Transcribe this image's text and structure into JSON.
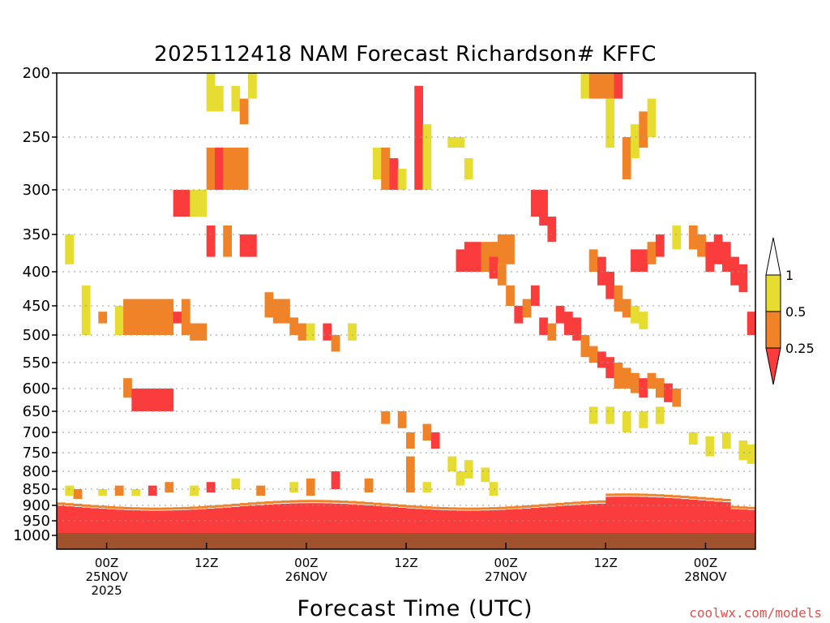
{
  "chart_data": {
    "type": "heatmap",
    "title": "2025112418 NAM Forecast Richardson# KFFC",
    "xlabel": "Forecast Time (UTC)",
    "ylabel": "Pressure (mb)",
    "credit": "coolwx.com/models",
    "y_ticks": [
      200,
      250,
      300,
      350,
      400,
      450,
      500,
      550,
      600,
      650,
      700,
      750,
      800,
      850,
      900,
      950,
      1000
    ],
    "ylim": [
      200,
      1020
    ],
    "xlim_hours": [
      -6,
      78
    ],
    "x_ticks": [
      {
        "hour": 0,
        "lines": [
          "00Z",
          "25NOV",
          "2025"
        ]
      },
      {
        "hour": 12,
        "lines": [
          "12Z"
        ]
      },
      {
        "hour": 24,
        "lines": [
          "00Z",
          "26NOV"
        ]
      },
      {
        "hour": 36,
        "lines": [
          "12Z"
        ]
      },
      {
        "hour": 48,
        "lines": [
          "00Z",
          "27NOV"
        ]
      },
      {
        "hour": 60,
        "lines": [
          "12Z"
        ]
      },
      {
        "hour": 72,
        "lines": [
          "00Z",
          "28NOV"
        ]
      }
    ],
    "legend": {
      "position": "right",
      "bins": [
        {
          "label": "1",
          "color": "#ffffff"
        },
        {
          "label": "0.5",
          "color": "#e6dc32"
        },
        {
          "label": "0.25",
          "color": "#f08228"
        },
        {
          "label": "",
          "color": "#fa3c3c"
        }
      ]
    },
    "colors": {
      "yellow": "#e6dc32",
      "orange": "#f08228",
      "red": "#fa3c3c",
      "ground": "#a0522d"
    },
    "cells": [
      [
        -5,
        350,
        390,
        "y"
      ],
      [
        -3,
        420,
        500,
        "y"
      ],
      [
        -1,
        460,
        480,
        "o"
      ],
      [
        1,
        450,
        500,
        "y"
      ],
      [
        2,
        440,
        500,
        "o"
      ],
      [
        2,
        580,
        620,
        "o"
      ],
      [
        3,
        440,
        500,
        "o"
      ],
      [
        4,
        440,
        500,
        "o"
      ],
      [
        5,
        440,
        500,
        "o"
      ],
      [
        6,
        440,
        500,
        "o"
      ],
      [
        7,
        440,
        500,
        "o"
      ],
      [
        8,
        460,
        480,
        "r"
      ],
      [
        9,
        440,
        500,
        "o"
      ],
      [
        3,
        600,
        650,
        "r"
      ],
      [
        4,
        600,
        650,
        "r"
      ],
      [
        5,
        600,
        650,
        "r"
      ],
      [
        6,
        600,
        650,
        "r"
      ],
      [
        7,
        600,
        650,
        "r"
      ],
      [
        12,
        200,
        230,
        "y"
      ],
      [
        13,
        210,
        230,
        "y"
      ],
      [
        15,
        210,
        230,
        "y"
      ],
      [
        16,
        220,
        240,
        "o"
      ],
      [
        17,
        200,
        220,
        "y"
      ],
      [
        12,
        260,
        300,
        "o"
      ],
      [
        13,
        260,
        300,
        "r"
      ],
      [
        14,
        260,
        300,
        "o"
      ],
      [
        15,
        260,
        300,
        "o"
      ],
      [
        16,
        260,
        300,
        "o"
      ],
      [
        12,
        340,
        380,
        "r"
      ],
      [
        14,
        340,
        380,
        "o"
      ],
      [
        16,
        350,
        380,
        "r"
      ],
      [
        17,
        350,
        380,
        "r"
      ],
      [
        8,
        300,
        330,
        "r"
      ],
      [
        9,
        300,
        330,
        "r"
      ],
      [
        10,
        300,
        330,
        "y"
      ],
      [
        11,
        300,
        330,
        "y"
      ],
      [
        10,
        480,
        510,
        "o"
      ],
      [
        11,
        480,
        510,
        "o"
      ],
      [
        19,
        430,
        470,
        "o"
      ],
      [
        20,
        440,
        480,
        "o"
      ],
      [
        21,
        440,
        480,
        "o"
      ],
      [
        22,
        470,
        500,
        "o"
      ],
      [
        23,
        480,
        510,
        "o"
      ],
      [
        24,
        480,
        510,
        "y"
      ],
      [
        26,
        480,
        510,
        "r"
      ],
      [
        27,
        500,
        530,
        "o"
      ],
      [
        29,
        480,
        510,
        "y"
      ],
      [
        32,
        260,
        290,
        "y"
      ],
      [
        33,
        260,
        300,
        "o"
      ],
      [
        34,
        270,
        300,
        "r"
      ],
      [
        35,
        280,
        300,
        "y"
      ],
      [
        37,
        210,
        300,
        "r"
      ],
      [
        38,
        240,
        300,
        "y"
      ],
      [
        41,
        250,
        260,
        "y"
      ],
      [
        42,
        250,
        260,
        "y"
      ],
      [
        43,
        270,
        290,
        "y"
      ],
      [
        42,
        370,
        400,
        "r"
      ],
      [
        43,
        360,
        400,
        "r"
      ],
      [
        44,
        360,
        400,
        "r"
      ],
      [
        45,
        360,
        400,
        "o"
      ],
      [
        46,
        360,
        400,
        "o"
      ],
      [
        47,
        350,
        390,
        "o"
      ],
      [
        48,
        350,
        390,
        "o"
      ],
      [
        46,
        380,
        410,
        "r"
      ],
      [
        47,
        390,
        420,
        "o"
      ],
      [
        48,
        420,
        450,
        "o"
      ],
      [
        49,
        450,
        480,
        "r"
      ],
      [
        50,
        440,
        470,
        "o"
      ],
      [
        51,
        420,
        450,
        "r"
      ],
      [
        52,
        470,
        500,
        "r"
      ],
      [
        53,
        480,
        510,
        "o"
      ],
      [
        54,
        450,
        480,
        "r"
      ],
      [
        55,
        460,
        500,
        "r"
      ],
      [
        56,
        470,
        510,
        "r"
      ],
      [
        57,
        500,
        540,
        "o"
      ],
      [
        58,
        520,
        550,
        "o"
      ],
      [
        59,
        530,
        560,
        "r"
      ],
      [
        60,
        540,
        580,
        "r"
      ],
      [
        61,
        550,
        600,
        "o"
      ],
      [
        62,
        560,
        600,
        "o"
      ],
      [
        63,
        570,
        610,
        "o"
      ],
      [
        64,
        580,
        620,
        "r"
      ],
      [
        65,
        570,
        600,
        "o"
      ],
      [
        66,
        580,
        620,
        "o"
      ],
      [
        67,
        590,
        630,
        "r"
      ],
      [
        68,
        600,
        640,
        "o"
      ],
      [
        51,
        300,
        330,
        "r"
      ],
      [
        52,
        300,
        340,
        "r"
      ],
      [
        53,
        330,
        360,
        "r"
      ],
      [
        58,
        370,
        400,
        "o"
      ],
      [
        59,
        380,
        420,
        "r"
      ],
      [
        60,
        400,
        440,
        "r"
      ],
      [
        61,
        420,
        460,
        "o"
      ],
      [
        62,
        440,
        470,
        "o"
      ],
      [
        63,
        450,
        480,
        "y"
      ],
      [
        64,
        460,
        490,
        "y"
      ],
      [
        57,
        200,
        220,
        "y"
      ],
      [
        58,
        200,
        220,
        "o"
      ],
      [
        59,
        200,
        220,
        "o"
      ],
      [
        60,
        200,
        220,
        "o"
      ],
      [
        61,
        200,
        220,
        "r"
      ],
      [
        60,
        220,
        260,
        "y"
      ],
      [
        62,
        250,
        290,
        "o"
      ],
      [
        63,
        240,
        270,
        "y"
      ],
      [
        64,
        230,
        260,
        "o"
      ],
      [
        65,
        220,
        250,
        "y"
      ],
      [
        63,
        370,
        400,
        "r"
      ],
      [
        64,
        370,
        400,
        "r"
      ],
      [
        65,
        360,
        390,
        "o"
      ],
      [
        66,
        350,
        380,
        "r"
      ],
      [
        68,
        340,
        370,
        "y"
      ],
      [
        70,
        340,
        370,
        "o"
      ],
      [
        71,
        350,
        380,
        "o"
      ],
      [
        72,
        360,
        400,
        "r"
      ],
      [
        73,
        350,
        390,
        "r"
      ],
      [
        74,
        360,
        400,
        "r"
      ],
      [
        75,
        380,
        420,
        "r"
      ],
      [
        76,
        390,
        430,
        "r"
      ],
      [
        77,
        460,
        500,
        "r"
      ],
      [
        58,
        640,
        680,
        "y"
      ],
      [
        60,
        640,
        680,
        "y"
      ],
      [
        62,
        650,
        700,
        "y"
      ],
      [
        64,
        650,
        690,
        "y"
      ],
      [
        66,
        640,
        680,
        "y"
      ],
      [
        70,
        700,
        730,
        "y"
      ],
      [
        72,
        710,
        760,
        "y"
      ],
      [
        74,
        700,
        740,
        "y"
      ],
      [
        76,
        720,
        770,
        "y"
      ],
      [
        77,
        730,
        780,
        "y"
      ],
      [
        33,
        650,
        680,
        "o"
      ],
      [
        35,
        650,
        690,
        "o"
      ],
      [
        36,
        700,
        740,
        "o"
      ],
      [
        38,
        680,
        720,
        "o"
      ],
      [
        39,
        700,
        740,
        "r"
      ],
      [
        41,
        760,
        800,
        "y"
      ],
      [
        43,
        770,
        820,
        "y"
      ],
      [
        45,
        790,
        830,
        "y"
      ],
      [
        31,
        820,
        860,
        "o"
      ],
      [
        27,
        800,
        850,
        "r"
      ],
      [
        24,
        820,
        870,
        "o"
      ],
      [
        22,
        830,
        860,
        "y"
      ],
      [
        18,
        840,
        870,
        "o"
      ],
      [
        15,
        820,
        850,
        "y"
      ],
      [
        12,
        830,
        860,
        "r"
      ],
      [
        10,
        840,
        870,
        "y"
      ],
      [
        7,
        830,
        860,
        "o"
      ],
      [
        5,
        840,
        870,
        "r"
      ],
      [
        3,
        850,
        870,
        "y"
      ],
      [
        1,
        840,
        870,
        "o"
      ],
      [
        -1,
        850,
        870,
        "y"
      ],
      [
        -4,
        850,
        880,
        "o"
      ],
      [
        -5,
        840,
        870,
        "y"
      ],
      [
        36,
        760,
        800,
        "o"
      ],
      [
        36,
        800,
        860,
        "o"
      ],
      [
        38,
        830,
        860,
        "y"
      ],
      [
        42,
        800,
        840,
        "y"
      ],
      [
        46,
        830,
        870,
        "y"
      ]
    ]
  }
}
